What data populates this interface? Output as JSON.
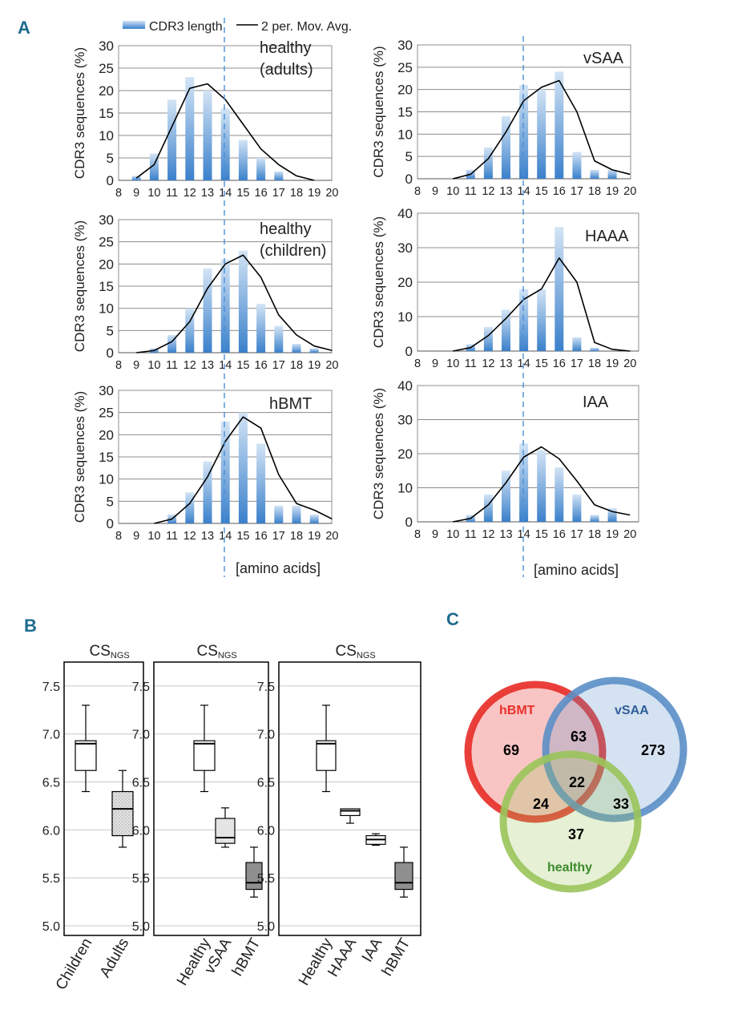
{
  "panel_labels": {
    "a": "A",
    "b": "B",
    "c": "C"
  },
  "colors": {
    "panel_label": "#1f6b8f",
    "bar_light": "#cfe1f4",
    "bar_dark": "#3d82cc",
    "grid": "#8c8c8c",
    "line": "#000000",
    "ref_line": "#4a8fd6",
    "box_white": "#ffffff",
    "box_light": "#e4e4e4",
    "box_dark": "#8f8f8f",
    "venn_hbmt": "#e8302a",
    "venn_vsaa": "#5b8fc7",
    "venn_healthy": "#9ac45a"
  },
  "histograms": {
    "legend": {
      "bar_label": "CDR3 length",
      "line_label": "2 per. Mov. Avg."
    },
    "ylabel": "CDR3 sequences (%)",
    "xlabel": "[amino acids]",
    "reference_x": 14
  },
  "box_panel_b": {
    "title_main": "CS",
    "title_sub": "NGS",
    "y_ticks": [
      "5.0",
      "5.5",
      "6.0",
      "6.5",
      "7.0",
      "7.5"
    ]
  },
  "venn": {
    "labels": {
      "hbmt": "hBMT",
      "vsaa": "vSAA",
      "healthy": "healthy"
    },
    "counts": {
      "hbmt_only": "69",
      "vsaa_only": "273",
      "healthy_only": "37",
      "hbmt_vsaa": "63",
      "hbmt_healthy": "24",
      "vsaa_healthy": "33",
      "all": "22"
    }
  },
  "chart_data": [
    {
      "type": "bar",
      "id": "healthy_adults",
      "title": "healthy\n(adults)",
      "xlabel": "",
      "ylabel": "CDR3 sequences (%)",
      "categories": [
        8,
        9,
        10,
        11,
        12,
        13,
        14,
        15,
        16,
        17,
        18,
        19,
        20
      ],
      "ylim": [
        0,
        30
      ],
      "yticks": [
        0,
        5,
        10,
        15,
        20,
        25,
        30
      ],
      "series": [
        {
          "name": "CDR3 length",
          "kind": "bar",
          "values": [
            0,
            1,
            6,
            18,
            23,
            20,
            16,
            9,
            5,
            2,
            0,
            0,
            0
          ]
        },
        {
          "name": "2 per. Mov. Avg.",
          "kind": "line",
          "x": [
            9,
            10,
            11,
            12,
            13,
            14,
            15,
            16,
            17,
            18,
            19
          ],
          "values": [
            0.5,
            3.5,
            12,
            20.5,
            21.5,
            18,
            12.5,
            7,
            3.5,
            1,
            0
          ]
        }
      ]
    },
    {
      "type": "bar",
      "id": "vsaa",
      "title": "vSAA",
      "xlabel": "",
      "ylabel": "CDR3 sequences (%)",
      "categories": [
        8,
        9,
        10,
        11,
        12,
        13,
        14,
        15,
        16,
        17,
        18,
        19,
        20
      ],
      "ylim": [
        0,
        30
      ],
      "yticks": [
        0,
        5,
        10,
        15,
        20,
        25,
        30
      ],
      "series": [
        {
          "name": "CDR3 length",
          "kind": "bar",
          "values": [
            0,
            0,
            0,
            2,
            7,
            14,
            21,
            20,
            24,
            6,
            2,
            2,
            0
          ]
        },
        {
          "name": "2 per. Mov. Avg.",
          "kind": "line",
          "x": [
            10,
            11,
            12,
            13,
            14,
            15,
            16,
            17,
            18,
            19,
            20
          ],
          "values": [
            0,
            1,
            4.5,
            10.5,
            17.5,
            20.5,
            22,
            15,
            4,
            2,
            1
          ]
        }
      ]
    },
    {
      "type": "bar",
      "id": "healthy_children",
      "title": "healthy\n(children)",
      "xlabel": "",
      "ylabel": "CDR3 sequences (%)",
      "categories": [
        8,
        9,
        10,
        11,
        12,
        13,
        14,
        15,
        16,
        17,
        18,
        19,
        20
      ],
      "ylim": [
        0,
        30
      ],
      "yticks": [
        0,
        5,
        10,
        15,
        20,
        25,
        30
      ],
      "series": [
        {
          "name": "CDR3 length",
          "kind": "bar",
          "values": [
            0,
            0,
            1,
            4,
            10,
            19,
            21,
            23,
            11,
            6,
            2,
            1,
            0
          ]
        },
        {
          "name": "2 per. Mov. Avg.",
          "kind": "line",
          "x": [
            9,
            10,
            11,
            12,
            13,
            14,
            15,
            16,
            17,
            18,
            19,
            20
          ],
          "values": [
            0,
            0.5,
            2.5,
            7,
            14.5,
            20,
            22,
            17,
            8.5,
            4,
            1.5,
            0.5
          ]
        }
      ]
    },
    {
      "type": "bar",
      "id": "haaa",
      "title": "HAAA",
      "xlabel": "",
      "ylabel": "CDR3 sequences (%)",
      "categories": [
        8,
        9,
        10,
        11,
        12,
        13,
        14,
        15,
        16,
        17,
        18,
        19,
        20
      ],
      "ylim": [
        0,
        40
      ],
      "yticks": [
        0,
        10,
        20,
        30,
        40
      ],
      "series": [
        {
          "name": "CDR3 length",
          "kind": "bar",
          "values": [
            0,
            0,
            0,
            2,
            7,
            12,
            18,
            18,
            36,
            4,
            1,
            0,
            0
          ]
        },
        {
          "name": "2 per. Mov. Avg.",
          "kind": "line",
          "x": [
            10,
            11,
            12,
            13,
            14,
            15,
            16,
            17,
            18,
            19,
            20
          ],
          "values": [
            0,
            1,
            4.5,
            9.5,
            15,
            18,
            27,
            20,
            2.5,
            0.5,
            0
          ]
        }
      ]
    },
    {
      "type": "bar",
      "id": "hbmt",
      "title": "hBMT",
      "xlabel": "[amino acids]",
      "ylabel": "CDR3 sequences (%)",
      "categories": [
        8,
        9,
        10,
        11,
        12,
        13,
        14,
        15,
        16,
        17,
        18,
        19,
        20
      ],
      "ylim": [
        0,
        30
      ],
      "yticks": [
        0,
        5,
        10,
        15,
        20,
        25,
        30
      ],
      "series": [
        {
          "name": "CDR3 length",
          "kind": "bar",
          "values": [
            0,
            0,
            0,
            2,
            7,
            14,
            23,
            25,
            18,
            4,
            4,
            2,
            0
          ]
        },
        {
          "name": "2 per. Mov. Avg.",
          "kind": "line",
          "x": [
            10,
            11,
            12,
            13,
            14,
            15,
            16,
            17,
            18,
            19,
            20
          ],
          "values": [
            0,
            1,
            4.5,
            10.5,
            18.5,
            24,
            21.5,
            11,
            4.5,
            3,
            1
          ]
        }
      ]
    },
    {
      "type": "bar",
      "id": "iaa",
      "title": "IAA",
      "xlabel": "[amino acids]",
      "ylabel": "CDR3 sequences (%)",
      "categories": [
        8,
        9,
        10,
        11,
        12,
        13,
        14,
        15,
        16,
        17,
        18,
        19,
        20
      ],
      "ylim": [
        0,
        40
      ],
      "yticks": [
        0,
        10,
        20,
        30,
        40
      ],
      "series": [
        {
          "name": "CDR3 length",
          "kind": "bar",
          "values": [
            0,
            0,
            0,
            2,
            8,
            15,
            23,
            21,
            16,
            8,
            2,
            4,
            0
          ]
        },
        {
          "name": "2 per. Mov. Avg.",
          "kind": "line",
          "x": [
            10,
            11,
            12,
            13,
            14,
            15,
            16,
            17,
            18,
            19,
            20
          ],
          "values": [
            0,
            1,
            5,
            11.5,
            19,
            22,
            18.5,
            12,
            5,
            3,
            2
          ]
        }
      ]
    },
    {
      "type": "box",
      "id": "cs_children_adults",
      "title": "CS_NGS",
      "ylabel": "",
      "ylim": [
        4.9,
        7.75
      ],
      "yticks": [
        5.0,
        5.5,
        6.0,
        6.5,
        7.0,
        7.5
      ],
      "boxes": [
        {
          "label": "Children",
          "min": 6.4,
          "q1": 6.62,
          "median": 6.9,
          "q3": 6.93,
          "max": 7.3,
          "fill": "white"
        },
        {
          "label": "Adults",
          "min": 5.82,
          "q1": 5.94,
          "median": 6.22,
          "q3": 6.4,
          "max": 6.62,
          "fill": "pattern"
        }
      ]
    },
    {
      "type": "box",
      "id": "cs_healthy_vsaa_hbmt",
      "title": "CS_NGS",
      "ylabel": "",
      "ylim": [
        4.9,
        7.75
      ],
      "yticks": [
        5.0,
        5.5,
        6.0,
        6.5,
        7.0,
        7.5
      ],
      "boxes": [
        {
          "label": "Healthy",
          "min": 6.4,
          "q1": 6.62,
          "median": 6.9,
          "q3": 6.93,
          "max": 7.3,
          "fill": "white"
        },
        {
          "label": "vSAA",
          "min": 5.82,
          "q1": 5.86,
          "median": 5.92,
          "q3": 6.12,
          "max": 6.23,
          "fill": "light"
        },
        {
          "label": "hBMT",
          "min": 5.3,
          "q1": 5.38,
          "median": 5.45,
          "q3": 5.66,
          "max": 5.82,
          "fill": "dark"
        }
      ]
    },
    {
      "type": "box",
      "id": "cs_healthy_haaa_iaa_hbmt",
      "title": "CS_NGS",
      "ylabel": "",
      "ylim": [
        4.9,
        7.75
      ],
      "yticks": [
        5.0,
        5.5,
        6.0,
        6.5,
        7.0,
        7.5
      ],
      "boxes": [
        {
          "label": "Healthy",
          "min": 6.4,
          "q1": 6.62,
          "median": 6.9,
          "q3": 6.93,
          "max": 7.3,
          "fill": "white"
        },
        {
          "label": "HAAA",
          "min": 6.07,
          "q1": 6.15,
          "median": 6.2,
          "q3": 6.22,
          "max": 6.22,
          "fill": "white"
        },
        {
          "label": "IAA",
          "min": 5.84,
          "q1": 5.85,
          "median": 5.9,
          "q3": 5.94,
          "max": 5.96,
          "fill": "white"
        },
        {
          "label": "hBMT",
          "min": 5.3,
          "q1": 5.38,
          "median": 5.45,
          "q3": 5.66,
          "max": 5.82,
          "fill": "dark"
        }
      ]
    }
  ]
}
